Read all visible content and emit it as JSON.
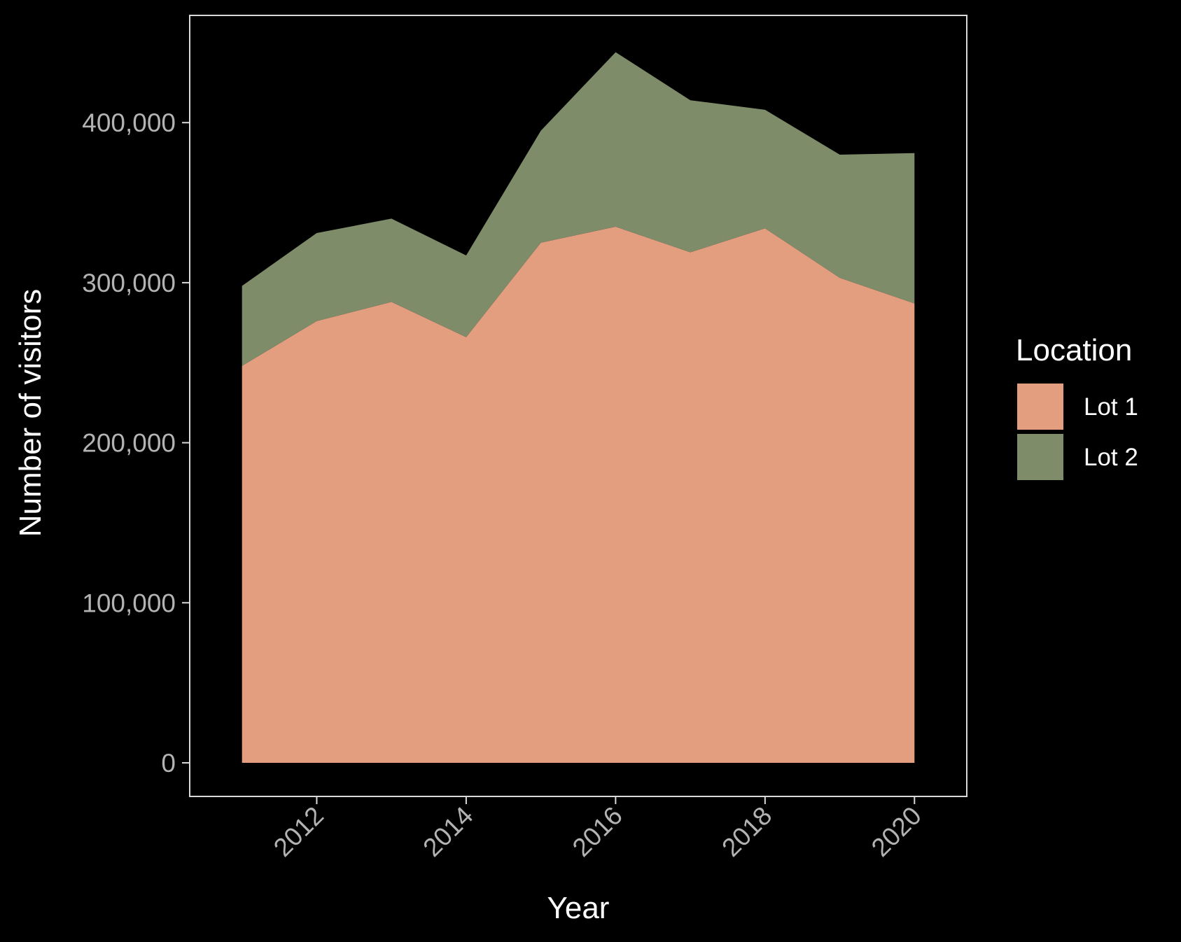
{
  "chart_data": {
    "type": "area",
    "stacked": true,
    "title": "",
    "xlabel": "Year",
    "ylabel": "Number of visitors",
    "x": [
      2011,
      2012,
      2013,
      2014,
      2015,
      2016,
      2017,
      2018,
      2019,
      2020
    ],
    "xlim": [
      2010.3,
      2020.7
    ],
    "ylim": [
      -21000,
      467000
    ],
    "x_ticks": [
      {
        "value": 2012,
        "label": "2012"
      },
      {
        "value": 2014,
        "label": "2014"
      },
      {
        "value": 2016,
        "label": "2016"
      },
      {
        "value": 2018,
        "label": "2018"
      },
      {
        "value": 2020,
        "label": "2020"
      }
    ],
    "y_ticks": [
      {
        "value": 0,
        "label": "0"
      },
      {
        "value": 100000,
        "label": "100,000"
      },
      {
        "value": 200000,
        "label": "200,000"
      },
      {
        "value": 300000,
        "label": "300,000"
      },
      {
        "value": 400000,
        "label": "400,000"
      }
    ],
    "series": [
      {
        "name": "Lot 1",
        "color": "#e39e80",
        "values": [
          248000,
          276000,
          288000,
          266000,
          325000,
          335000,
          319000,
          334000,
          303000,
          287000
        ]
      },
      {
        "name": "Lot 2",
        "color": "#7f8c69",
        "values": [
          50000,
          55000,
          52000,
          51000,
          70000,
          109000,
          95000,
          74000,
          77000,
          94000
        ]
      }
    ],
    "legend": {
      "title": "Location",
      "position": "right"
    },
    "grid": false,
    "colors": {
      "background": "#000000",
      "panel_border": "#d9d9d9",
      "tick_text": "#b3b3b3",
      "title_text": "#ffffff"
    }
  }
}
